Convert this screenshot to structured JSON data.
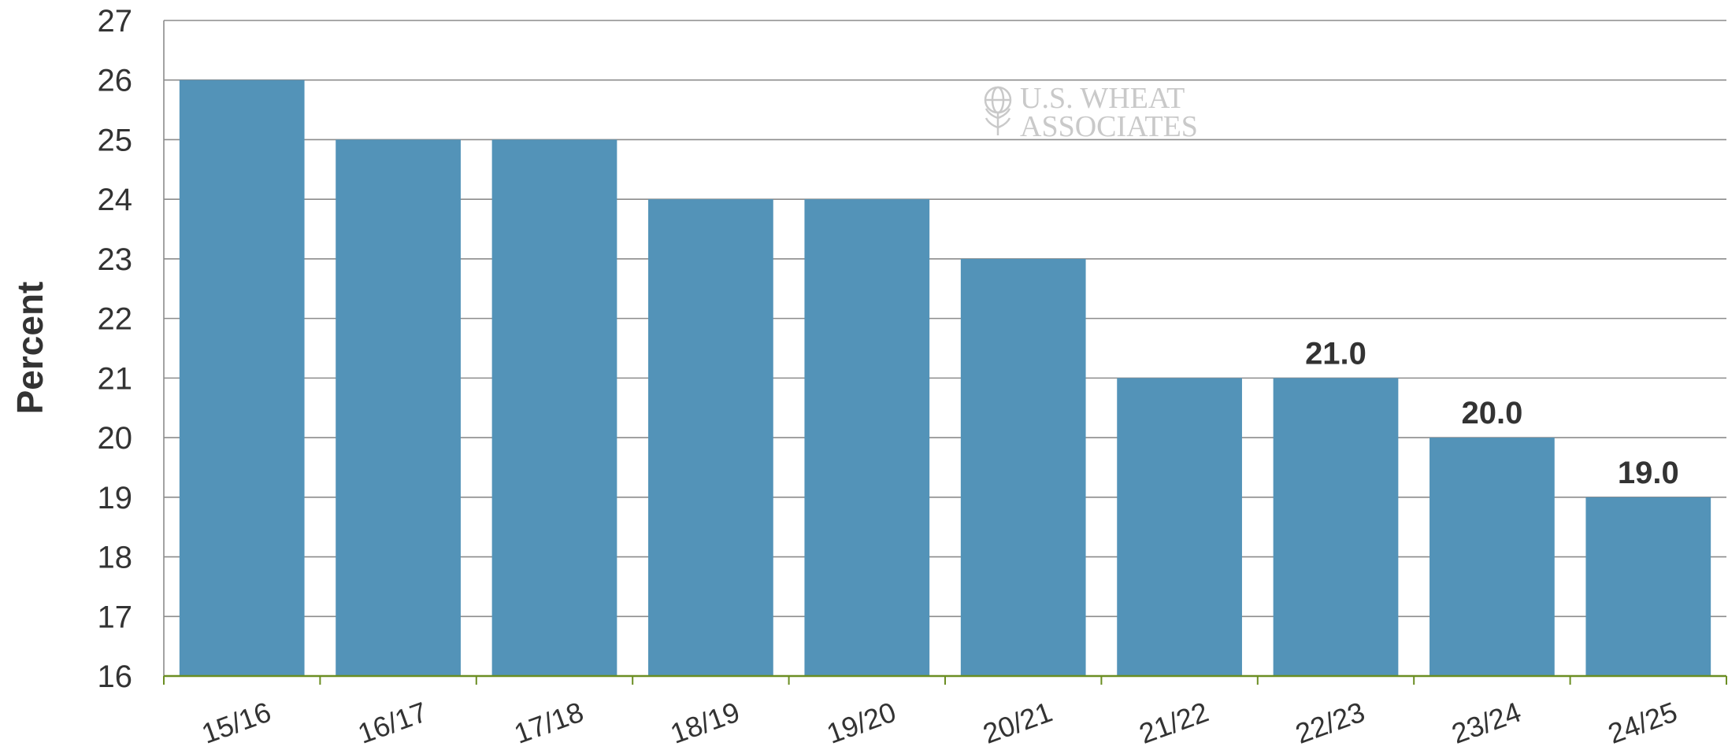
{
  "chart_data": {
    "type": "bar",
    "title": "",
    "xlabel": "",
    "ylabel": "Percent",
    "ylim": [
      16,
      27
    ],
    "yticks": [
      16,
      17,
      18,
      19,
      20,
      21,
      22,
      23,
      24,
      25,
      26,
      27
    ],
    "categories": [
      "15/16",
      "16/17",
      "17/18",
      "18/19",
      "19/20",
      "20/21",
      "21/22",
      "22/23",
      "23/24",
      "24/25"
    ],
    "values": [
      26,
      25,
      25,
      24,
      24,
      23,
      21,
      21,
      20,
      19
    ],
    "data_labels": [
      "",
      "",
      "",
      "",
      "",
      "",
      "",
      "21.0",
      "20.0",
      "19.0"
    ],
    "grid": true,
    "bar_color": "#5393b8",
    "grid_color": "#8c8c8c",
    "axis_color": "#6b8e23",
    "watermark": {
      "line1": "U.S. WHEAT",
      "line2": "ASSOCIATES"
    }
  }
}
